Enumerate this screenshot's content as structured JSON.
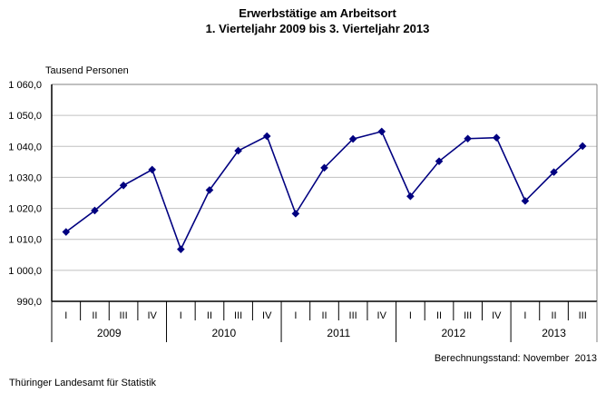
{
  "chart_data": {
    "type": "line",
    "title": "Erwerbstätige am Arbeitsort",
    "subtitle": "1. Vierteljahr 2009 bis 3. Vierteljahr 2013",
    "ylabel": "Tausend Personen",
    "ylim": [
      990,
      1060
    ],
    "ytick_step": 10,
    "ytick_labels_top_down": [
      "1 060,0",
      "1 050,0",
      "1 040,0",
      "1 030,0",
      "1 020,0",
      "1 010,0",
      "1 000,0",
      "990,0"
    ],
    "grid": true,
    "legend": "none",
    "marker": "diamond",
    "line_color": "#000080",
    "grid_color": "#c0c0c0",
    "frame_color": "#808080",
    "axis_color": "#000000",
    "groups": [
      {
        "year": "2009",
        "quarters": [
          "I",
          "II",
          "III",
          "IV"
        ],
        "values": [
          1012.4,
          1019.3,
          1027.4,
          1032.5
        ]
      },
      {
        "year": "2010",
        "quarters": [
          "I",
          "II",
          "III",
          "IV"
        ],
        "values": [
          1006.8,
          1025.9,
          1038.6,
          1043.3
        ]
      },
      {
        "year": "2011",
        "quarters": [
          "I",
          "II",
          "III",
          "IV"
        ],
        "values": [
          1018.3,
          1033.1,
          1042.4,
          1044.8
        ]
      },
      {
        "year": "2012",
        "quarters": [
          "I",
          "II",
          "III",
          "IV"
        ],
        "values": [
          1023.9,
          1035.2,
          1042.5,
          1042.8
        ]
      },
      {
        "year": "2013",
        "quarters": [
          "I",
          "II",
          "III"
        ],
        "values": [
          1022.4,
          1031.7,
          1040.1
        ]
      }
    ]
  },
  "footer": {
    "note": "Berechnungsstand: November  2013",
    "source": "Thüringer Landesamt für Statistik"
  }
}
